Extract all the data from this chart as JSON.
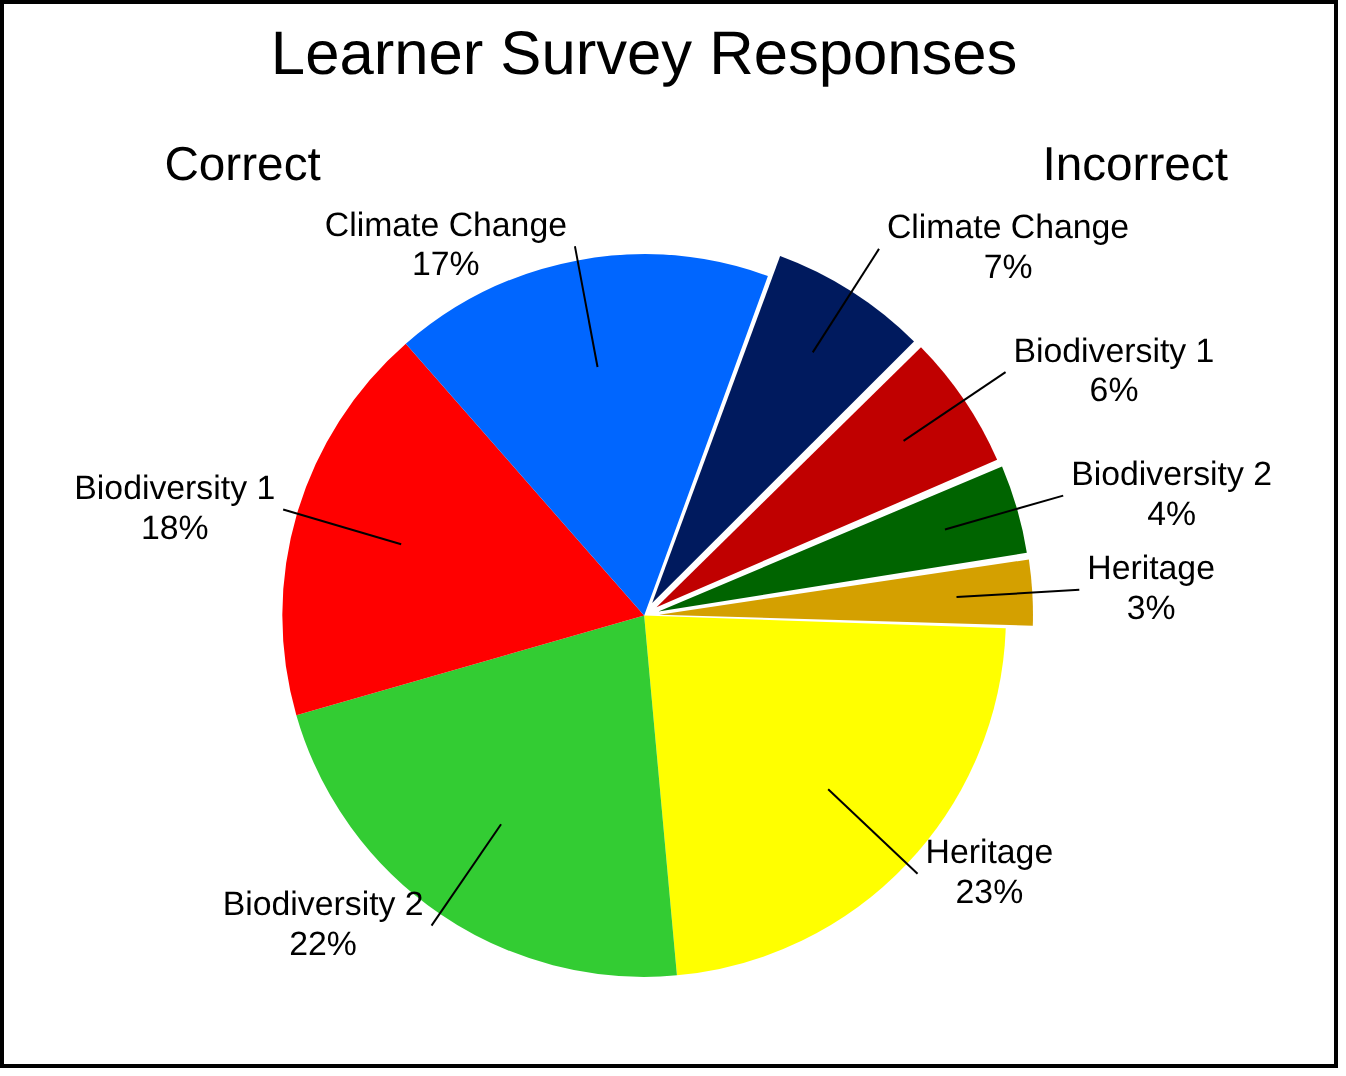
{
  "chart_data": {
    "type": "pie",
    "title": "Learner Survey Responses",
    "categories": [
      "Climate Change",
      "Biodiversity 1",
      "Biodiversity 2",
      "Heritage",
      "Heritage",
      "Biodiversity 2",
      "Biodiversity 1",
      "Climate Change"
    ],
    "values": [
      7,
      6,
      4,
      3,
      23,
      22,
      18,
      17
    ],
    "value_labels": [
      "7%",
      "6%",
      "4%",
      "3%",
      "23%",
      "22%",
      "18%",
      "17%"
    ],
    "colors": [
      "#001a5e",
      "#c00000",
      "#006400",
      "#d4a000",
      "#ffff00",
      "#33cc33",
      "#ff0000",
      "#0066ff"
    ],
    "annotations": [
      "Correct",
      "Incorrect"
    ],
    "legend": false
  }
}
